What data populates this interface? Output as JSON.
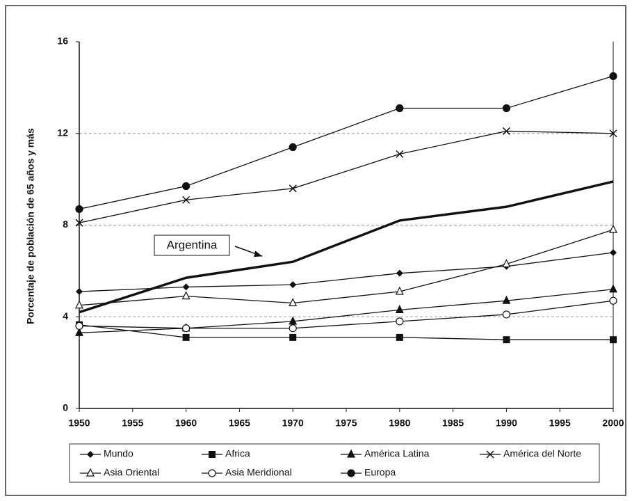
{
  "chart_data": {
    "type": "line",
    "y_label": "Porcentaje de población de 65 años y más",
    "x": [
      1950,
      1960,
      1970,
      1980,
      1990,
      2000
    ],
    "xlim": [
      1950,
      2000
    ],
    "xticks": [
      1950,
      1955,
      1960,
      1965,
      1970,
      1975,
      1980,
      1985,
      1990,
      1995,
      2000
    ],
    "ylim": [
      0,
      16
    ],
    "yticks": [
      0,
      4,
      8,
      12,
      16
    ],
    "grid": true,
    "series": [
      {
        "name": "Mundo",
        "color": "#111111",
        "marker": "diamond",
        "values": [
          5.1,
          5.3,
          5.4,
          5.9,
          6.2,
          6.8
        ]
      },
      {
        "name": "Africa",
        "color": "#111111",
        "marker": "square",
        "values": [
          3.65,
          3.1,
          3.1,
          3.1,
          3.0,
          3.0
        ]
      },
      {
        "name": "América Latina",
        "color": "#111111",
        "marker": "triangle",
        "values": [
          3.3,
          3.5,
          3.8,
          4.3,
          4.7,
          5.2
        ]
      },
      {
        "name": "América del Norte",
        "color": "#111111",
        "marker": "x",
        "values": [
          8.1,
          9.1,
          9.6,
          11.1,
          12.1,
          12.0
        ]
      },
      {
        "name": "Asia Oriental",
        "color": "#111111",
        "marker": "triangle-open",
        "values": [
          4.5,
          4.9,
          4.6,
          5.1,
          6.3,
          7.8
        ]
      },
      {
        "name": "Asia Meridional",
        "color": "#111111",
        "marker": "circle-open",
        "values": [
          3.6,
          3.5,
          3.5,
          3.8,
          4.1,
          4.7
        ]
      },
      {
        "name": "Europa",
        "color": "#111111",
        "marker": "circle",
        "values": [
          8.7,
          9.7,
          11.4,
          13.1,
          13.1,
          14.5
        ]
      },
      {
        "name": "Argentina",
        "color": "#111111",
        "marker": "none",
        "values": [
          4.2,
          5.7,
          6.4,
          8.2,
          8.8,
          9.9
        ]
      }
    ]
  }
}
